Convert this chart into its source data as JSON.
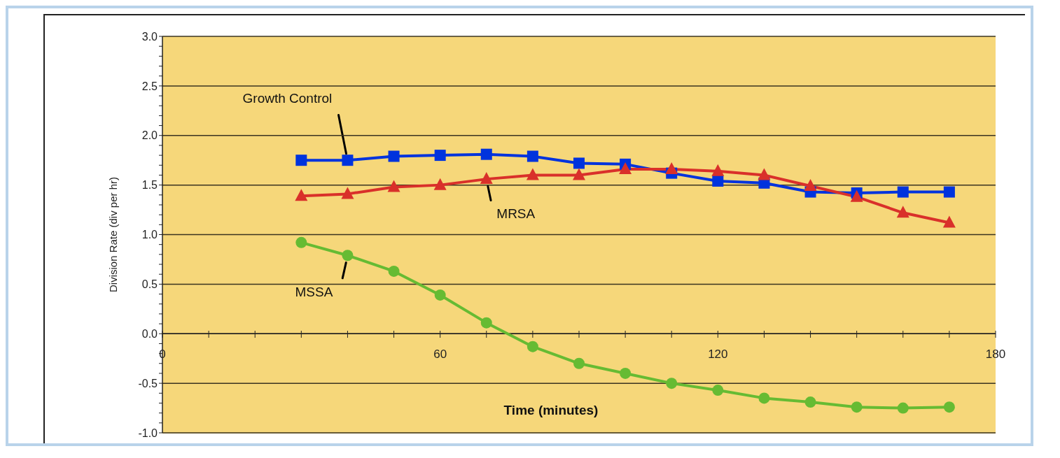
{
  "chart_data": {
    "type": "line",
    "xlabel": "Time (minutes)",
    "ylabel": "Division Rate (div per hr)",
    "x": [
      30,
      40,
      50,
      60,
      70,
      80,
      90,
      100,
      110,
      120,
      130,
      140,
      150,
      160,
      170
    ],
    "series": [
      {
        "name": "Growth Control",
        "color": "#0033dd",
        "marker": "square",
        "values": [
          1.75,
          1.75,
          1.79,
          1.8,
          1.81,
          1.79,
          1.72,
          1.71,
          1.62,
          1.54,
          1.52,
          1.43,
          1.42,
          1.43,
          1.43
        ]
      },
      {
        "name": "MRSA",
        "color": "#d9302a",
        "marker": "triangle",
        "values": [
          1.39,
          1.41,
          1.48,
          1.5,
          1.56,
          1.6,
          1.6,
          1.66,
          1.66,
          1.64,
          1.6,
          1.49,
          1.38,
          1.22,
          1.12
        ]
      },
      {
        "name": "MSSA",
        "color": "#66bb33",
        "marker": "circle",
        "values": [
          0.92,
          0.79,
          0.63,
          0.39,
          0.11,
          -0.13,
          -0.3,
          -0.4,
          -0.5,
          -0.57,
          -0.65,
          -0.69,
          -0.74,
          -0.75,
          -0.74
        ]
      }
    ],
    "xlim": [
      0,
      180
    ],
    "xticks": [
      0,
      {
        "value": 10,
        "label": null
      },
      {
        "value": 20,
        "label": null
      },
      {
        "value": 30,
        "label": null
      },
      {
        "value": 40,
        "label": null
      },
      {
        "value": 50,
        "label": null
      },
      60,
      {
        "value": 70,
        "label": null
      },
      {
        "value": 80,
        "label": null
      },
      {
        "value": 90,
        "label": null
      },
      {
        "value": 100,
        "label": null
      },
      {
        "value": 110,
        "label": null
      },
      120,
      {
        "value": 130,
        "label": null
      },
      {
        "value": 140,
        "label": null
      },
      {
        "value": 150,
        "label": null
      },
      {
        "value": 160,
        "label": null
      },
      {
        "value": 170,
        "label": null
      },
      180
    ],
    "ylim": [
      -1,
      3
    ],
    "yticks": [
      {
        "value": -1,
        "label": "-1.0"
      },
      {
        "value": -0.9,
        "label": null
      },
      {
        "value": -0.8,
        "label": null
      },
      {
        "value": -0.7,
        "label": null
      },
      {
        "value": -0.6,
        "label": null
      },
      {
        "value": -0.5,
        "label": "-0.5"
      },
      {
        "value": -0.4,
        "label": null
      },
      {
        "value": -0.3,
        "label": null
      },
      {
        "value": -0.2,
        "label": null
      },
      {
        "value": -0.1,
        "label": null
      },
      {
        "value": 0,
        "label": "0.0"
      },
      {
        "value": 0.1,
        "label": null
      },
      {
        "value": 0.2,
        "label": null
      },
      {
        "value": 0.3,
        "label": null
      },
      {
        "value": 0.4,
        "label": null
      },
      {
        "value": 0.5,
        "label": "0.5"
      },
      {
        "value": 0.6,
        "label": null
      },
      {
        "value": 0.7,
        "label": null
      },
      {
        "value": 0.8,
        "label": null
      },
      {
        "value": 0.9,
        "label": null
      },
      {
        "value": 1,
        "label": "1.0"
      },
      {
        "value": 1.1,
        "label": null
      },
      {
        "value": 1.2,
        "label": null
      },
      {
        "value": 1.3,
        "label": null
      },
      {
        "value": 1.4,
        "label": null
      },
      {
        "value": 1.5,
        "label": "1.5"
      },
      {
        "value": 1.6,
        "label": null
      },
      {
        "value": 1.7,
        "label": null
      },
      {
        "value": 1.8,
        "label": null
      },
      {
        "value": 1.9,
        "label": null
      },
      {
        "value": 2,
        "label": "2.0"
      },
      {
        "value": 2.1,
        "label": null
      },
      {
        "value": 2.2,
        "label": null
      },
      {
        "value": 2.3,
        "label": null
      },
      {
        "value": 2.4,
        "label": null
      },
      {
        "value": 2.5,
        "label": "2.5"
      },
      {
        "value": 2.6,
        "label": null
      },
      {
        "value": 2.7,
        "label": null
      },
      {
        "value": 2.8,
        "label": null
      },
      {
        "value": 2.9,
        "label": null
      },
      {
        "value": 3,
        "label": "3.0"
      }
    ],
    "grid": "y",
    "legend": false,
    "line_style": "solid"
  }
}
